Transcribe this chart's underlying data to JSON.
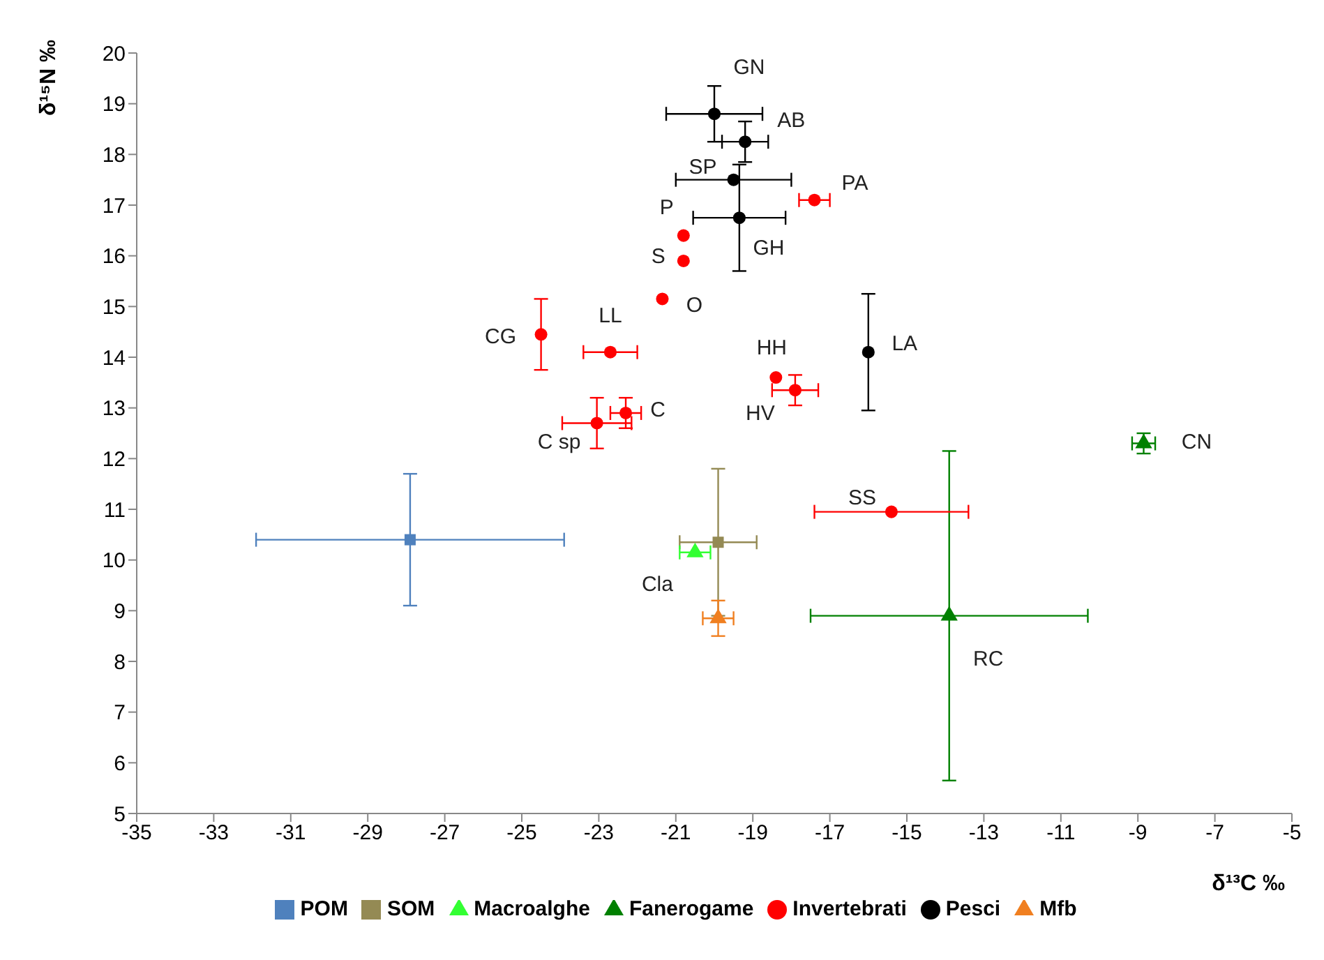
{
  "chart_data": {
    "type": "scatter",
    "xlabel": "δ¹³C ‰",
    "ylabel": "δ¹⁵N ‰",
    "xlim": [
      -35,
      -5
    ],
    "xticks": [
      -35,
      -33,
      -31,
      -29,
      -27,
      -25,
      -23,
      -21,
      -19,
      -17,
      -15,
      -13,
      -11,
      -9,
      -7,
      -5
    ],
    "ylim": [
      5,
      20
    ],
    "yticks": [
      5,
      6,
      7,
      8,
      9,
      10,
      11,
      12,
      13,
      14,
      15,
      16,
      17,
      18,
      19,
      20
    ],
    "legend": "bottom",
    "grid": false,
    "series": [
      {
        "name": "POM",
        "color": "#4f81bd",
        "marker": "square",
        "x": [
          -27.9
        ],
        "values": [
          10.4
        ],
        "xerrors": [
          4.0
        ],
        "errors": [
          1.3
        ]
      },
      {
        "name": "SOM",
        "color": "#948a54",
        "marker": "square",
        "x": [
          -19.9
        ],
        "values": [
          10.35
        ],
        "xerrors": [
          1.0
        ],
        "errors": [
          1.45
        ]
      },
      {
        "name": "Macroalghe",
        "color": "#33ff33",
        "marker": "triangle",
        "x": [
          -20.5
        ],
        "values": [
          10.15
        ],
        "xerrors": [
          0.4
        ],
        "errors": [
          null
        ]
      },
      {
        "name": "Fanerogame",
        "color": "#008000",
        "marker": "triangle",
        "x": [
          -13.9,
          -8.85
        ],
        "values": [
          8.9,
          12.3
        ],
        "xerrors": [
          3.6,
          0.3
        ],
        "errors": [
          3.25,
          0.2
        ]
      },
      {
        "name": "Invertebrati",
        "color": "#ff0000",
        "marker": "circle",
        "x": [
          -17.4,
          -20.8,
          -20.8,
          -21.35,
          -24.5,
          -22.7,
          -18.4,
          -17.9,
          -22.3,
          -23.05,
          -15.4
        ],
        "values": [
          17.1,
          16.4,
          15.9,
          15.15,
          14.45,
          14.1,
          13.6,
          13.35,
          12.9,
          12.7,
          10.95
        ],
        "xerrors": [
          0.4,
          null,
          null,
          null,
          null,
          0.7,
          null,
          0.6,
          0.4,
          0.9,
          2.0
        ],
        "errors": [
          null,
          null,
          null,
          null,
          0.7,
          null,
          null,
          0.3,
          0.3,
          0.5,
          null
        ]
      },
      {
        "name": "Pesci",
        "color": "#000000",
        "marker": "circle",
        "x": [
          -20.0,
          -19.2,
          -19.5,
          -19.35,
          -16.0
        ],
        "values": [
          18.8,
          18.25,
          17.5,
          16.75,
          14.1
        ],
        "xerrors": [
          1.25,
          0.6,
          1.5,
          1.2,
          null
        ],
        "errors": [
          0.55,
          0.4,
          null,
          1.05,
          1.15
        ]
      },
      {
        "name": "Mfb",
        "color": "#f07f20",
        "marker": "triangle",
        "x": [
          -19.9
        ],
        "values": [
          8.85
        ],
        "xerrors": [
          0.4
        ],
        "errors": [
          0.35
        ]
      }
    ],
    "annotations": [
      {
        "text": "GN",
        "x": -20.0,
        "y": 18.8
      },
      {
        "text": "AB",
        "x": -19.2,
        "y": 18.25
      },
      {
        "text": "SP",
        "x": -19.5,
        "y": 17.5
      },
      {
        "text": "PA",
        "x": -17.4,
        "y": 17.1
      },
      {
        "text": "P",
        "x": -20.8,
        "y": 16.4
      },
      {
        "text": "S",
        "x": -20.8,
        "y": 15.9
      },
      {
        "text": "GH",
        "x": -19.35,
        "y": 16.75
      },
      {
        "text": "O",
        "x": -21.35,
        "y": 15.15
      },
      {
        "text": "CG",
        "x": -24.5,
        "y": 14.45
      },
      {
        "text": "LL",
        "x": -22.7,
        "y": 14.1
      },
      {
        "text": "HH",
        "x": -18.4,
        "y": 13.6
      },
      {
        "text": "LA",
        "x": -16.0,
        "y": 14.1
      },
      {
        "text": "HV",
        "x": -17.9,
        "y": 13.35
      },
      {
        "text": "C",
        "x": -22.3,
        "y": 12.9
      },
      {
        "text": "C sp",
        "x": -23.05,
        "y": 12.7
      },
      {
        "text": "CN",
        "x": -8.85,
        "y": 12.3
      },
      {
        "text": "SS",
        "x": -15.4,
        "y": 10.95
      },
      {
        "text": "Cla",
        "x": -20.5,
        "y": 10.15
      },
      {
        "text": "RC",
        "x": -13.9,
        "y": 8.9
      }
    ]
  }
}
